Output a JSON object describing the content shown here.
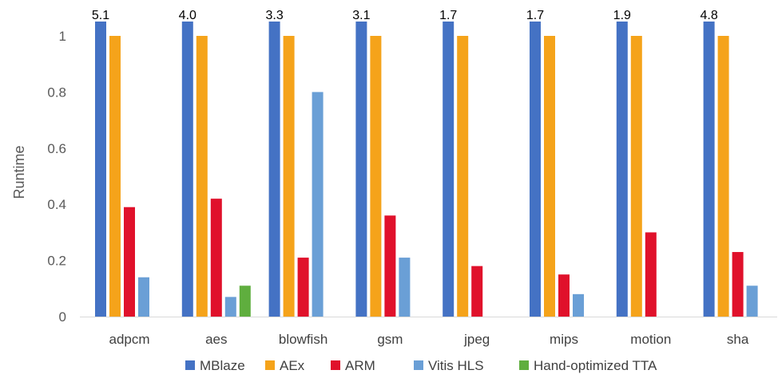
{
  "chart_data": {
    "type": "bar",
    "title": "",
    "xlabel": "",
    "ylabel": "Runtime",
    "ylim": [
      0,
      1
    ],
    "yticks": [
      0,
      0.2,
      0.4,
      0.6,
      0.8,
      1
    ],
    "grid": false,
    "legend_position": "bottom",
    "categories": [
      "adpcm",
      "aes",
      "blowfish",
      "gsm",
      "jpeg",
      "mips",
      "motion",
      "sha"
    ],
    "series": [
      {
        "name": "MBlaze",
        "color": "#4472C4",
        "values": [
          5.1,
          4.0,
          3.3,
          3.1,
          1.7,
          1.7,
          1.9,
          4.8
        ],
        "labels": [
          "5.1",
          "4.0",
          "3.3",
          "3.1",
          "1.7",
          "1.7",
          "1.9",
          "4.8"
        ],
        "clipped_at_axis_max": true
      },
      {
        "name": "AEx",
        "color": "#F5A31A",
        "values": [
          1,
          1,
          1,
          1,
          1,
          1,
          1,
          1
        ]
      },
      {
        "name": "ARM",
        "color": "#E0112B",
        "values": [
          0.39,
          0.42,
          0.21,
          0.36,
          0.18,
          0.15,
          0.3,
          0.23
        ]
      },
      {
        "name": "Vitis HLS",
        "color": "#6A9FD6",
        "values": [
          0.14,
          0.07,
          0.8,
          0.21,
          null,
          0.08,
          null,
          0.11
        ]
      },
      {
        "name": "Hand-optimized TTA",
        "color": "#5FAE3E",
        "values": [
          null,
          0.11,
          null,
          null,
          null,
          null,
          null,
          null
        ]
      }
    ]
  }
}
